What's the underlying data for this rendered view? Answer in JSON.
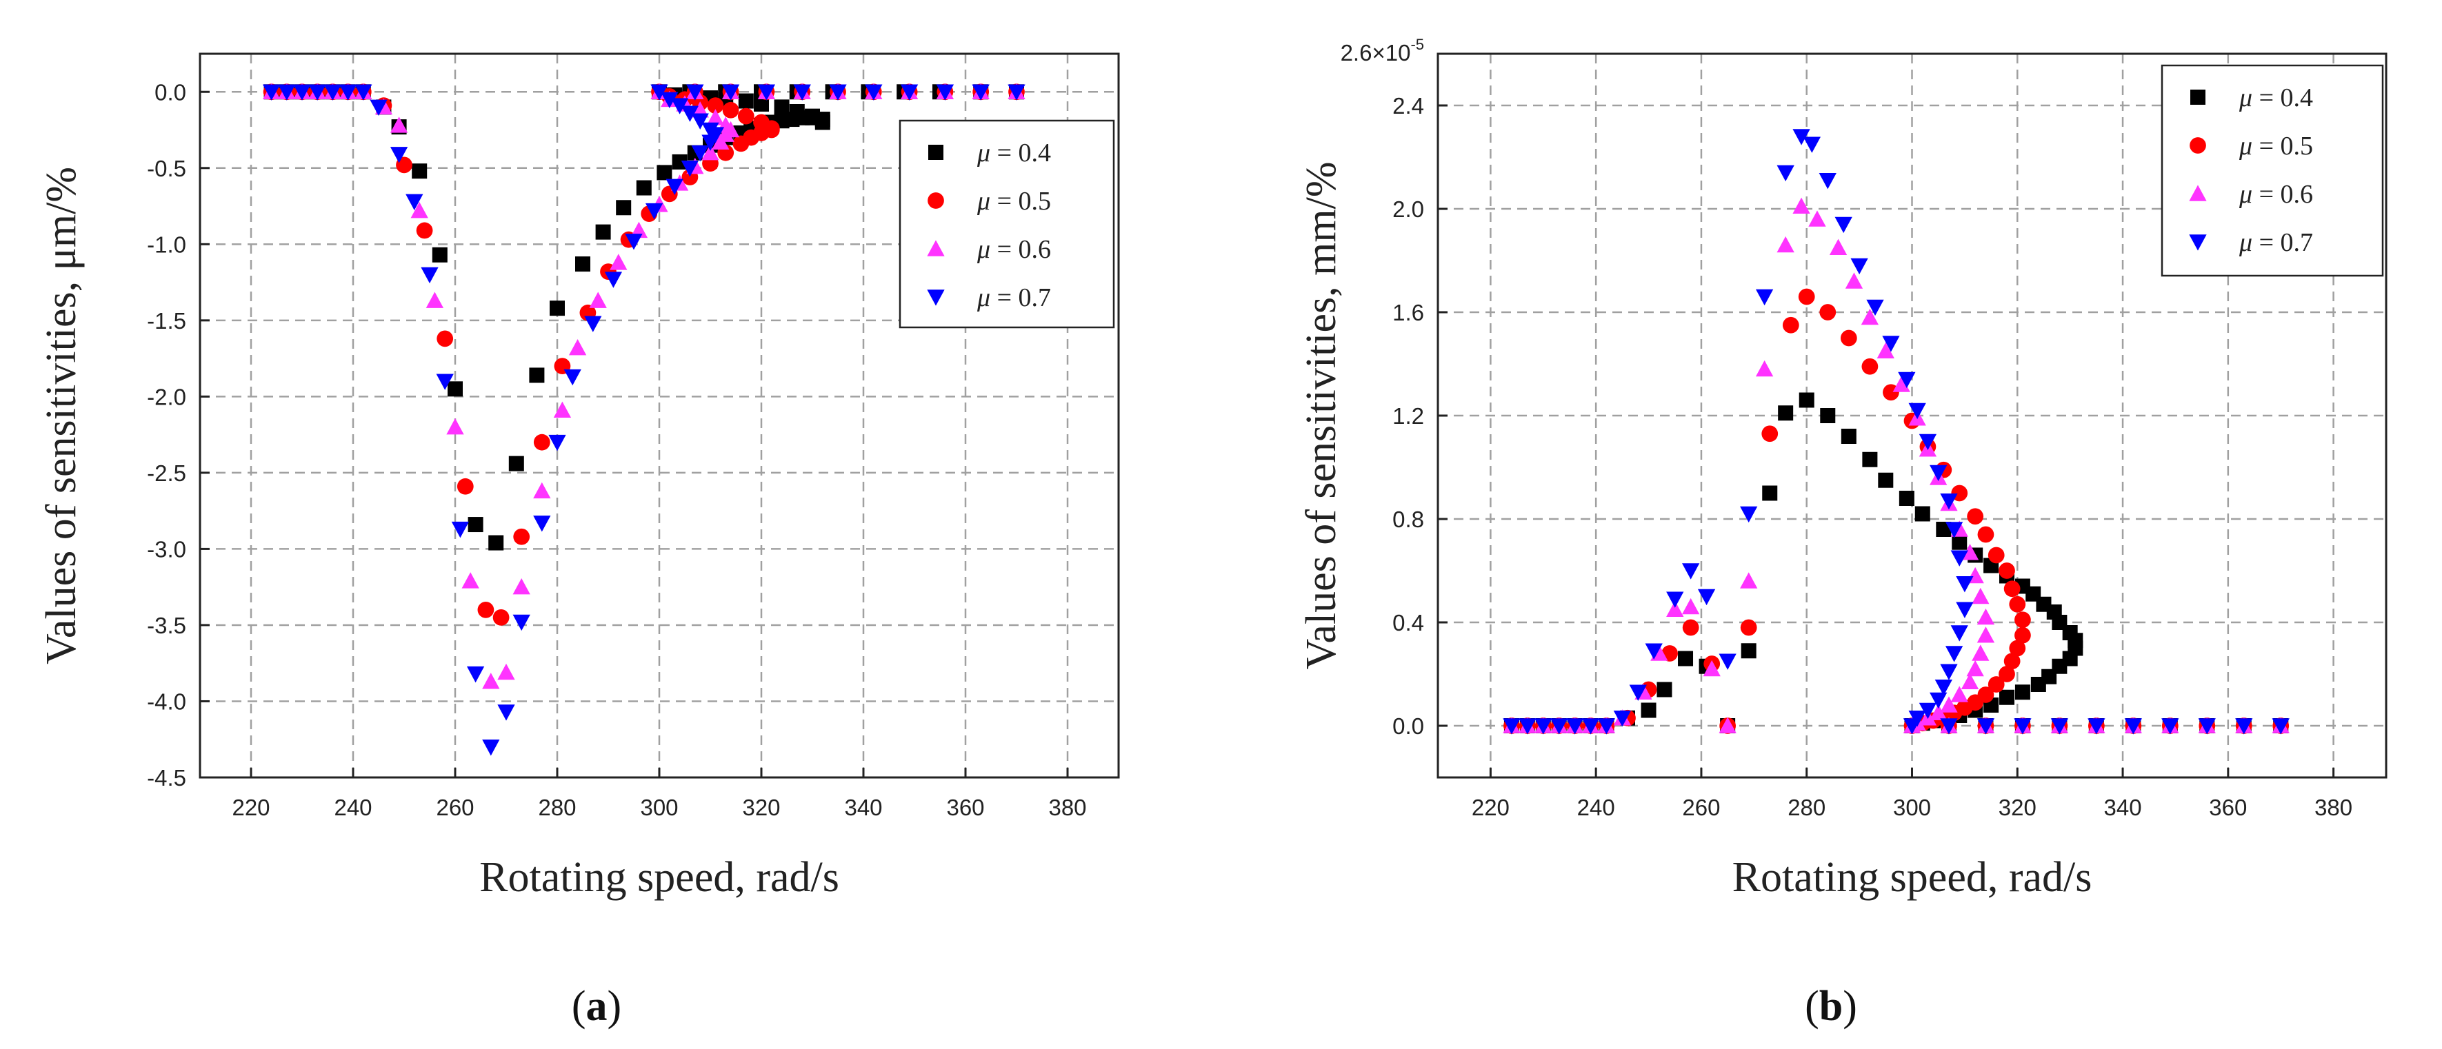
{
  "chart_data": [
    {
      "type": "scatter",
      "panel_label": "(a)",
      "xlabel": "Rotating speed, rad/s",
      "ylabel": "Values of sensitivities, μm/%",
      "xlim": [
        210,
        390
      ],
      "ylim": [
        -4.5,
        0.25
      ],
      "xticks": [
        220,
        240,
        260,
        280,
        300,
        320,
        340,
        360,
        380
      ],
      "yticks": [
        0.0,
        -0.5,
        -1.0,
        -1.5,
        -2.0,
        -2.5,
        -3.0,
        -3.5,
        -4.0,
        -4.5
      ],
      "ytick_labels": [
        "0.0",
        "-0.5",
        "-1.0",
        "-1.5",
        "-2.0",
        "-2.5",
        "-3.0",
        "-3.5",
        "-4.0",
        "-4.5"
      ],
      "grid": true,
      "legend_position": "top-right",
      "series": [
        {
          "name": "μ = 0.4",
          "color": "#000000",
          "marker": "square",
          "x": [
            224,
            227,
            230,
            233,
            236,
            239,
            242,
            246,
            249,
            253,
            257,
            260,
            264,
            268,
            272,
            276,
            280,
            285,
            289,
            293,
            297,
            301,
            304,
            307,
            310,
            313,
            316,
            318,
            320,
            322,
            324,
            326,
            328,
            330,
            332,
            332,
            330,
            327,
            324,
            320,
            317,
            313,
            310,
            306,
            303,
            300,
            306,
            313,
            320,
            327,
            334,
            341,
            348,
            355,
            363,
            370
          ],
          "y": [
            0,
            0,
            0,
            0,
            0,
            0,
            0,
            -0.1,
            -0.23,
            -0.52,
            -1.07,
            -1.95,
            -2.84,
            -2.96,
            -2.44,
            -1.86,
            -1.42,
            -1.13,
            -0.92,
            -0.76,
            -0.63,
            -0.53,
            -0.46,
            -0.4,
            -0.35,
            -0.3,
            -0.27,
            -0.24,
            -0.22,
            -0.2,
            -0.19,
            -0.18,
            -0.17,
            -0.17,
            -0.18,
            -0.2,
            -0.16,
            -0.13,
            -0.1,
            -0.08,
            -0.06,
            -0.05,
            -0.04,
            -0.03,
            -0.02,
            0,
            0,
            0,
            0,
            0,
            0,
            0,
            0,
            0,
            0,
            0
          ]
        },
        {
          "name": "μ = 0.5",
          "color": "#ff0000",
          "marker": "circle",
          "x": [
            224,
            227,
            230,
            233,
            236,
            239,
            242,
            246,
            250,
            254,
            258,
            262,
            266,
            269,
            273,
            277,
            281,
            286,
            290,
            294,
            298,
            302,
            306,
            310,
            313,
            316,
            318,
            320,
            322,
            322,
            320,
            317,
            314,
            311,
            308,
            305,
            302,
            300,
            307,
            314,
            321,
            328,
            335,
            342,
            349,
            356,
            363,
            370
          ],
          "y": [
            0,
            0,
            0,
            0,
            0,
            0,
            0,
            -0.09,
            -0.48,
            -0.91,
            -1.62,
            -2.59,
            -3.4,
            -3.45,
            -2.92,
            -2.3,
            -1.8,
            -1.45,
            -1.18,
            -0.97,
            -0.8,
            -0.67,
            -0.56,
            -0.47,
            -0.4,
            -0.34,
            -0.3,
            -0.27,
            -0.25,
            -0.24,
            -0.2,
            -0.16,
            -0.12,
            -0.09,
            -0.07,
            -0.05,
            -0.03,
            0,
            0,
            0,
            0,
            0,
            0,
            0,
            0,
            0,
            0,
            0
          ]
        },
        {
          "name": "μ = 0.6",
          "color": "#ff33ff",
          "marker": "triangle-up",
          "x": [
            224,
            227,
            230,
            233,
            236,
            239,
            242,
            246,
            249,
            253,
            256,
            260,
            263,
            267,
            270,
            273,
            277,
            281,
            284,
            288,
            292,
            296,
            300,
            304,
            307,
            310,
            312,
            313,
            314,
            313,
            311,
            308,
            305,
            302,
            300,
            307,
            314,
            321,
            328,
            335,
            342,
            349,
            356,
            363,
            370
          ],
          "y": [
            0,
            0,
            0,
            0,
            0,
            0,
            0,
            -0.1,
            -0.22,
            -0.78,
            -1.37,
            -2.2,
            -3.21,
            -3.87,
            -3.81,
            -3.25,
            -2.62,
            -2.09,
            -1.68,
            -1.37,
            -1.12,
            -0.91,
            -0.74,
            -0.6,
            -0.49,
            -0.4,
            -0.33,
            -0.28,
            -0.25,
            -0.22,
            -0.17,
            -0.12,
            -0.08,
            -0.05,
            0,
            0,
            0,
            0,
            0,
            0,
            0,
            0,
            0,
            0,
            0
          ]
        },
        {
          "name": "μ = 0.7",
          "color": "#0000ff",
          "marker": "triangle-down",
          "x": [
            224,
            227,
            230,
            233,
            236,
            239,
            242,
            245,
            249,
            252,
            255,
            258,
            261,
            264,
            267,
            270,
            273,
            277,
            280,
            283,
            287,
            291,
            295,
            299,
            303,
            306,
            308,
            310,
            311,
            310,
            308,
            306,
            304,
            302,
            300,
            307,
            314,
            321,
            328,
            335,
            342,
            349,
            356,
            363,
            370
          ],
          "y": [
            0,
            0,
            0,
            0,
            0,
            0,
            0,
            -0.1,
            -0.41,
            -0.72,
            -1.2,
            -1.9,
            -2.87,
            -3.82,
            -4.3,
            -4.07,
            -3.48,
            -2.83,
            -2.3,
            -1.87,
            -1.52,
            -1.23,
            -0.98,
            -0.78,
            -0.62,
            -0.5,
            -0.4,
            -0.33,
            -0.28,
            -0.25,
            -0.19,
            -0.14,
            -0.09,
            -0.05,
            0,
            0,
            0,
            0,
            0,
            0,
            0,
            0,
            0,
            0,
            0
          ]
        }
      ]
    },
    {
      "type": "scatter",
      "panel_label": "(b)",
      "xlabel": "Rotating speed, rad/s",
      "ylabel": "Values of sensitivities, mm/%",
      "xlim": [
        210,
        390
      ],
      "ylim": [
        -0.2,
        2.6
      ],
      "xticks": [
        220,
        240,
        260,
        280,
        300,
        320,
        340,
        360,
        380
      ],
      "yticks": [
        0.0,
        0.4,
        0.8,
        1.2,
        1.6,
        2.0,
        2.4
      ],
      "ytick_labels": [
        "0.0",
        "0.4",
        "0.8",
        "1.2",
        "1.6",
        "2.0",
        "2.4"
      ],
      "y_top_label": "2.6×10",
      "y_top_exponent": "-5",
      "grid": true,
      "legend_position": "top-right",
      "series": [
        {
          "name": "μ = 0.4",
          "color": "#000000",
          "marker": "square",
          "x": [
            224,
            227,
            230,
            233,
            236,
            239,
            242,
            246,
            250,
            253,
            257,
            261,
            265,
            269,
            273,
            276,
            280,
            284,
            288,
            292,
            295,
            299,
            302,
            306,
            309,
            312,
            315,
            318,
            321,
            323,
            325,
            327,
            328,
            330,
            331,
            331,
            330,
            328,
            326,
            324,
            321,
            318,
            315,
            312,
            309,
            306,
            304,
            302,
            300,
            307,
            314,
            321,
            328,
            335,
            342,
            349,
            356,
            363,
            370
          ],
          "y": [
            0,
            0,
            0,
            0,
            0,
            0,
            0,
            0.03,
            0.06,
            0.14,
            0.26,
            0.23,
            0.0,
            0.29,
            0.9,
            1.21,
            1.26,
            1.2,
            1.12,
            1.03,
            0.95,
            0.88,
            0.82,
            0.76,
            0.71,
            0.66,
            0.62,
            0.58,
            0.54,
            0.51,
            0.47,
            0.44,
            0.4,
            0.36,
            0.33,
            0.3,
            0.26,
            0.23,
            0.19,
            0.16,
            0.13,
            0.11,
            0.08,
            0.06,
            0.04,
            0.03,
            0.02,
            0.01,
            0,
            0,
            0,
            0,
            0,
            0,
            0,
            0,
            0,
            0,
            0
          ]
        },
        {
          "name": "μ = 0.5",
          "color": "#ff0000",
          "marker": "circle",
          "x": [
            224,
            227,
            230,
            233,
            236,
            239,
            242,
            246,
            250,
            254,
            258,
            262,
            265,
            269,
            273,
            277,
            280,
            284,
            288,
            292,
            296,
            300,
            303,
            306,
            309,
            312,
            314,
            316,
            318,
            319,
            320,
            321,
            321,
            320,
            319,
            318,
            316,
            314,
            312,
            310,
            308,
            306,
            304,
            302,
            300,
            307,
            314,
            321,
            328,
            335,
            342,
            349,
            356,
            363,
            370
          ],
          "y": [
            0,
            0,
            0,
            0,
            0,
            0,
            0,
            0.03,
            0.14,
            0.28,
            0.38,
            0.24,
            0.0,
            0.38,
            1.13,
            1.55,
            1.66,
            1.6,
            1.5,
            1.39,
            1.29,
            1.18,
            1.08,
            0.99,
            0.9,
            0.81,
            0.74,
            0.66,
            0.6,
            0.53,
            0.47,
            0.41,
            0.35,
            0.3,
            0.25,
            0.2,
            0.16,
            0.12,
            0.09,
            0.07,
            0.05,
            0.03,
            0.02,
            0.01,
            0,
            0,
            0,
            0,
            0,
            0,
            0,
            0,
            0,
            0,
            0
          ]
        },
        {
          "name": "μ = 0.6",
          "color": "#ff33ff",
          "marker": "triangle-up",
          "x": [
            224,
            227,
            230,
            233,
            236,
            239,
            242,
            245,
            249,
            252,
            255,
            258,
            262,
            265,
            269,
            272,
            276,
            279,
            282,
            286,
            289,
            292,
            295,
            298,
            301,
            303,
            305,
            307,
            309,
            311,
            312,
            313,
            314,
            314,
            313,
            312,
            311,
            309,
            307,
            305,
            303,
            301,
            300,
            307,
            314,
            321,
            328,
            335,
            342,
            349,
            356,
            363,
            370
          ],
          "y": [
            0,
            0,
            0,
            0,
            0,
            0,
            0,
            0.03,
            0.13,
            0.28,
            0.45,
            0.46,
            0.22,
            0.0,
            0.56,
            1.38,
            1.86,
            2.01,
            1.96,
            1.85,
            1.72,
            1.58,
            1.45,
            1.32,
            1.19,
            1.07,
            0.96,
            0.86,
            0.76,
            0.67,
            0.58,
            0.5,
            0.42,
            0.35,
            0.28,
            0.22,
            0.17,
            0.12,
            0.08,
            0.05,
            0.03,
            0.01,
            0,
            0,
            0,
            0,
            0,
            0,
            0,
            0,
            0,
            0,
            0
          ]
        },
        {
          "name": "μ = 0.7",
          "color": "#0000ff",
          "marker": "triangle-down",
          "x": [
            224,
            227,
            230,
            233,
            236,
            239,
            242,
            245,
            248,
            251,
            255,
            258,
            261,
            265,
            269,
            272,
            276,
            279,
            281,
            284,
            287,
            290,
            293,
            296,
            299,
            301,
            303,
            305,
            307,
            308,
            309,
            310,
            310,
            309,
            308,
            307,
            306,
            305,
            303,
            301,
            300,
            307,
            314,
            321,
            328,
            335,
            342,
            349,
            356,
            363,
            370
          ],
          "y": [
            0,
            0,
            0,
            0,
            0,
            0,
            0,
            0.03,
            0.13,
            0.29,
            0.49,
            0.6,
            0.5,
            0.25,
            0.82,
            1.66,
            2.14,
            2.28,
            2.25,
            2.11,
            1.94,
            1.78,
            1.62,
            1.48,
            1.34,
            1.22,
            1.1,
            0.98,
            0.87,
            0.76,
            0.65,
            0.55,
            0.45,
            0.36,
            0.28,
            0.21,
            0.15,
            0.1,
            0.06,
            0.03,
            0,
            0,
            0,
            0,
            0,
            0,
            0,
            0,
            0,
            0,
            0
          ]
        }
      ]
    }
  ]
}
